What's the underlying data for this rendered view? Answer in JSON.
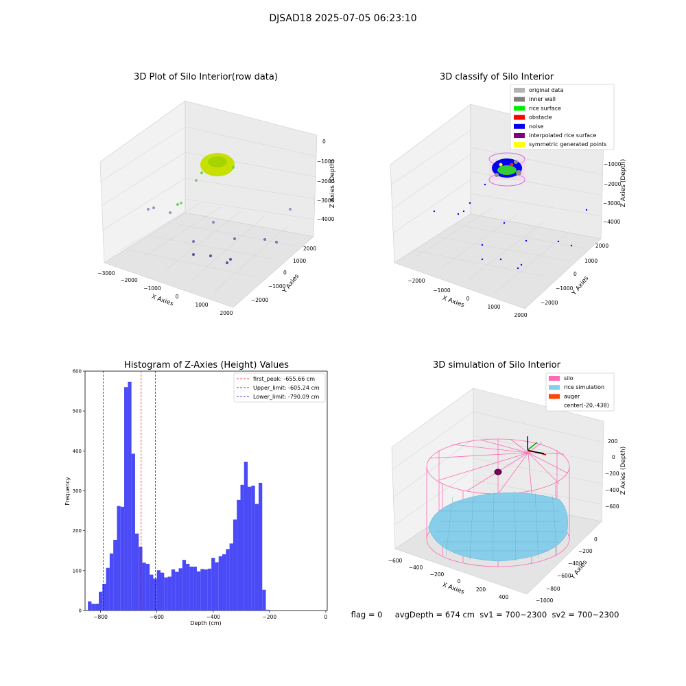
{
  "suptitle": "DJSAD18 2025-07-05 06:23:10",
  "status_line": "flag = 0     avgDepth = 674 cm  sv1 = 700~2300  sv2 = 700~2300",
  "colors": {
    "bar": "#4a4af7",
    "peak_line": "#ff0000",
    "limit_line": "#0000ff",
    "silo": "#ff69b4",
    "rice": "#87ceeb",
    "auger": "#ff4500",
    "grid": "#e6e6e6",
    "pane": "#f2f2f2"
  },
  "chart_data": [
    {
      "type": "scatter3d",
      "title": "3D Plot of Silo Interior(row data)",
      "xlabel": "X Axies",
      "ylabel": "Y Axies",
      "zlabel": "Z Axies (Depth)",
      "x_ticks": [
        "−3000",
        "−2000",
        "−1000",
        "0",
        "1000",
        "2000"
      ],
      "y_ticks": [
        "−2000",
        "−1000",
        "0",
        "1000",
        "2000"
      ],
      "z_ticks": [
        "0",
        "−1000",
        "−2000",
        "−3000",
        "−4000"
      ]
    },
    {
      "type": "scatter3d",
      "title": "3D classify of Silo Interior",
      "xlabel": "X Axies",
      "ylabel": "Y Axies",
      "zlabel": "Z Axies (Depth)",
      "x_ticks": [
        "−2000",
        "−1000",
        "0",
        "1000",
        "2000"
      ],
      "y_ticks": [
        "−2000",
        "−1000",
        "0",
        "1000",
        "2000"
      ],
      "z_ticks": [
        "−1000",
        "−2000",
        "−3000",
        "−4000"
      ],
      "legend": [
        {
          "label": "original data",
          "color": "#b3b3b3"
        },
        {
          "label": "inner wall",
          "color": "#808080"
        },
        {
          "label": "rice surface",
          "color": "#00ee00"
        },
        {
          "label": "obstacle",
          "color": "#ff0000"
        },
        {
          "label": "noise",
          "color": "#0000ee"
        },
        {
          "label": "interpolated rice surface",
          "color": "#800080"
        },
        {
          "label": "symmetric generated points",
          "color": "#ffff00"
        }
      ]
    },
    {
      "type": "bar",
      "title": "Histogram of Z-Axies (Height) Values",
      "xlabel": "Depth (cm)",
      "ylabel": "Frequency",
      "xlim": [
        -855,
        5
      ],
      "ylim": [
        0,
        600
      ],
      "x_ticks": [
        {
          "value": -800,
          "label": "−800"
        },
        {
          "value": -600,
          "label": "−600"
        },
        {
          "value": -400,
          "label": "−400"
        },
        {
          "value": -200,
          "label": "−200"
        },
        {
          "value": 0,
          "label": "0"
        }
      ],
      "y_ticks": [
        {
          "value": 0,
          "label": "0"
        },
        {
          "value": 100,
          "label": "100"
        },
        {
          "value": 200,
          "label": "200"
        },
        {
          "value": 300,
          "label": "300"
        },
        {
          "value": 400,
          "label": "400"
        },
        {
          "value": 500,
          "label": "500"
        },
        {
          "value": 600,
          "label": "600"
        }
      ],
      "bin_start": -845,
      "bin_width": 12.9,
      "values": [
        23,
        17,
        17,
        47,
        67,
        107,
        143,
        177,
        262,
        260,
        560,
        573,
        393,
        193,
        160,
        120,
        117,
        90,
        80,
        101,
        95,
        83,
        85,
        103,
        97,
        106,
        127,
        117,
        110,
        110,
        98,
        104,
        103,
        105,
        132,
        121,
        136,
        141,
        154,
        168,
        228,
        277,
        315,
        373,
        310,
        313,
        267,
        320,
        52,
        2
      ],
      "vlines": [
        {
          "label": "first_peak: -655.66 cm",
          "x": -655.66,
          "color": "#ff0000"
        },
        {
          "label": "Upper_limit: -605.24 cm",
          "x": -605.24,
          "color": "#0000ff"
        },
        {
          "label": "Lower_limit: -790.09 cm",
          "x": -790.09,
          "color": "#0000ff"
        }
      ]
    },
    {
      "type": "surface3d",
      "title": "3D simulation of Silo Interior",
      "xlabel": "X Axies",
      "ylabel": "Y Axies",
      "zlabel": "Z Axies (Depth)",
      "x_ticks": [
        "−600",
        "−400",
        "−200",
        "0",
        "200",
        "400"
      ],
      "y_ticks": [
        "−1000",
        "−800",
        "−600",
        "−400",
        "−200",
        "0"
      ],
      "z_ticks": [
        "200",
        "0",
        "−200",
        "−400",
        "−600"
      ],
      "legend": [
        {
          "label": "silo",
          "color": "#ff69b4"
        },
        {
          "label": "rice simulation",
          "color": "#87ceeb"
        },
        {
          "label": "auger",
          "color": "#ff4500"
        },
        {
          "label": "center(-20,-438)",
          "color": ""
        }
      ]
    }
  ]
}
